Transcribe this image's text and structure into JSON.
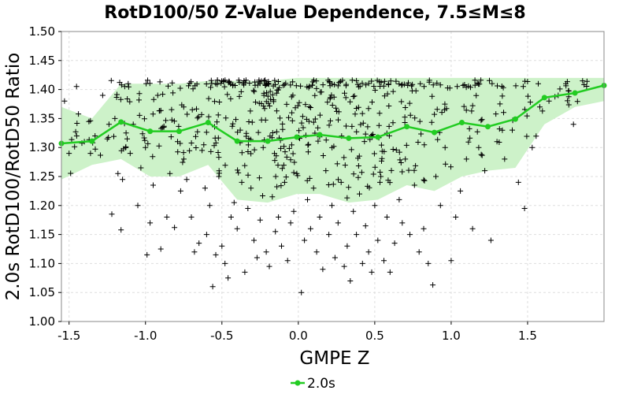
{
  "chart_data": {
    "type": "scatter",
    "title": "RotD100/50 Z-Value Dependence, 7.5≤M≤8",
    "xlabel": "GMPE Z",
    "ylabel": "2.0s RotD100/RotD50 Ratio",
    "xlim": [
      -1.55,
      2.0
    ],
    "ylim": [
      1.0,
      1.5
    ],
    "x_ticks": [
      -1.5,
      -1.0,
      -0.5,
      0.0,
      0.5,
      1.0,
      1.5
    ],
    "x_tick_labels": [
      "-1.5",
      "-1.0",
      "-0.5",
      "0.0",
      "0.5",
      "1.0",
      "1.5"
    ],
    "y_ticks": [
      1.0,
      1.05,
      1.1,
      1.15,
      1.2,
      1.25,
      1.3,
      1.35,
      1.4,
      1.45,
      1.5
    ],
    "y_tick_labels": [
      "1.00",
      "1.05",
      "1.10",
      "1.15",
      "1.20",
      "1.25",
      "1.30",
      "1.35",
      "1.40",
      "1.45",
      "1.50"
    ],
    "grid": true,
    "legend_position": "bottom-center",
    "colors": {
      "mean_line": "#22cc22",
      "band_fill": "#cdf2c9",
      "points": "#000000",
      "grid": "#dddddd"
    },
    "mean_series": {
      "name": "2.0s",
      "x": [
        -1.55,
        -1.35,
        -1.16,
        -0.97,
        -0.78,
        -0.59,
        -0.4,
        -0.2,
        -0.01,
        0.14,
        0.33,
        0.52,
        0.71,
        0.89,
        1.07,
        1.24,
        1.42,
        1.61,
        1.81,
        2.0
      ],
      "y": [
        1.307,
        1.311,
        1.344,
        1.328,
        1.328,
        1.343,
        1.311,
        1.311,
        1.318,
        1.322,
        1.316,
        1.318,
        1.336,
        1.326,
        1.343,
        1.336,
        1.349,
        1.386,
        1.394,
        1.407
      ]
    },
    "std_band": {
      "x": [
        -1.55,
        -1.35,
        -1.16,
        -0.97,
        -0.78,
        -0.59,
        -0.4,
        -0.2,
        -0.01,
        0.14,
        0.33,
        0.52,
        0.71,
        0.89,
        1.07,
        1.24,
        1.42,
        1.61,
        1.81,
        2.0
      ],
      "upper": [
        1.37,
        1.35,
        1.41,
        1.41,
        1.41,
        1.415,
        1.415,
        1.415,
        1.42,
        1.42,
        1.42,
        1.42,
        1.42,
        1.42,
        1.42,
        1.42,
        1.42,
        1.42,
        1.42,
        1.42
      ],
      "lower": [
        1.245,
        1.27,
        1.28,
        1.25,
        1.25,
        1.27,
        1.21,
        1.205,
        1.22,
        1.22,
        1.205,
        1.21,
        1.235,
        1.225,
        1.25,
        1.26,
        1.265,
        1.34,
        1.37,
        1.38
      ]
    },
    "scatter": {
      "points": [
        [
          -1.53,
          1.38
        ],
        [
          -1.5,
          1.29
        ],
        [
          -1.45,
          1.32
        ],
        [
          -1.4,
          1.31
        ],
        [
          -1.36,
          1.29
        ],
        [
          -1.33,
          1.32
        ],
        [
          -1.28,
          1.39
        ],
        [
          -1.25,
          1.315
        ],
        [
          -1.22,
          1.185
        ],
        [
          -1.2,
          1.35
        ],
        [
          -1.18,
          1.255
        ],
        [
          -1.16,
          1.158
        ],
        [
          -1.15,
          1.245
        ],
        [
          -1.12,
          1.315
        ],
        [
          -1.1,
          1.29
        ],
        [
          -1.08,
          1.34
        ],
        [
          -1.05,
          1.2
        ],
        [
          -1.03,
          1.265
        ],
        [
          -1.0,
          1.3
        ],
        [
          -0.99,
          1.115
        ],
        [
          -0.97,
          1.17
        ],
        [
          -0.95,
          1.235
        ],
        [
          -0.92,
          1.39
        ],
        [
          -0.9,
          1.125
        ],
        [
          -0.88,
          1.335
        ],
        [
          -0.86,
          1.18
        ],
        [
          -0.84,
          1.255
        ],
        [
          -0.81,
          1.162
        ],
        [
          -0.79,
          1.31
        ],
        [
          -0.77,
          1.225
        ],
        [
          -0.75,
          1.37
        ],
        [
          -0.73,
          1.245
        ],
        [
          -0.7,
          1.18
        ],
        [
          -0.68,
          1.12
        ],
        [
          -0.65,
          1.135
        ],
        [
          -0.63,
          1.295
        ],
        [
          -0.61,
          1.23
        ],
        [
          -0.6,
          1.15
        ],
        [
          -0.58,
          1.2
        ],
        [
          -0.56,
          1.06
        ],
        [
          -0.54,
          1.115
        ],
        [
          -0.52,
          1.25
        ],
        [
          -0.5,
          1.13
        ],
        [
          -0.48,
          1.1
        ],
        [
          -0.46,
          1.075
        ],
        [
          -0.44,
          1.18
        ],
        [
          -0.42,
          1.205
        ],
        [
          -0.4,
          1.16
        ],
        [
          -0.38,
          1.33
        ],
        [
          -0.35,
          1.085
        ],
        [
          -0.33,
          1.195
        ],
        [
          -0.31,
          1.23
        ],
        [
          -0.29,
          1.14
        ],
        [
          -0.27,
          1.11
        ],
        [
          -0.25,
          1.175
        ],
        [
          -0.23,
          1.3
        ],
        [
          -0.21,
          1.12
        ],
        [
          -0.19,
          1.095
        ],
        [
          -0.17,
          1.215
        ],
        [
          -0.15,
          1.155
        ],
        [
          -0.13,
          1.18
        ],
        [
          -0.11,
          1.13
        ],
        [
          -0.09,
          1.24
        ],
        [
          -0.07,
          1.105
        ],
        [
          -0.05,
          1.17
        ],
        [
          -0.03,
          1.19
        ],
        [
          -0.01,
          1.255
        ],
        [
          0.02,
          1.05
        ],
        [
          0.04,
          1.14
        ],
        [
          0.06,
          1.21
        ],
        [
          0.08,
          1.16
        ],
        [
          0.1,
          1.23
        ],
        [
          0.12,
          1.12
        ],
        [
          0.14,
          1.18
        ],
        [
          0.16,
          1.09
        ],
        [
          0.18,
          1.26
        ],
        [
          0.2,
          1.15
        ],
        [
          0.22,
          1.2
        ],
        [
          0.24,
          1.11
        ],
        [
          0.26,
          1.17
        ],
        [
          0.28,
          1.24
        ],
        [
          0.3,
          1.095
        ],
        [
          0.32,
          1.13
        ],
        [
          0.34,
          1.07
        ],
        [
          0.36,
          1.19
        ],
        [
          0.38,
          1.15
        ],
        [
          0.4,
          1.22
        ],
        [
          0.42,
          1.1
        ],
        [
          0.44,
          1.165
        ],
        [
          0.46,
          1.12
        ],
        [
          0.48,
          1.085
        ],
        [
          0.5,
          1.2
        ],
        [
          0.52,
          1.14
        ],
        [
          0.54,
          1.25
        ],
        [
          0.56,
          1.105
        ],
        [
          0.58,
          1.18
        ],
        [
          0.6,
          1.085
        ],
        [
          0.63,
          1.135
        ],
        [
          0.66,
          1.21
        ],
        [
          0.68,
          1.17
        ],
        [
          0.7,
          1.28
        ],
        [
          0.73,
          1.15
        ],
        [
          0.76,
          1.235
        ],
        [
          0.79,
          1.12
        ],
        [
          0.82,
          1.16
        ],
        [
          0.85,
          1.1
        ],
        [
          0.88,
          1.063
        ],
        [
          0.9,
          1.25
        ],
        [
          0.93,
          1.2
        ],
        [
          0.96,
          1.3
        ],
        [
          1.0,
          1.105
        ],
        [
          1.03,
          1.18
        ],
        [
          1.06,
          1.225
        ],
        [
          1.1,
          1.28
        ],
        [
          1.14,
          1.16
        ],
        [
          1.18,
          1.3
        ],
        [
          1.22,
          1.26
        ],
        [
          1.26,
          1.14
        ],
        [
          1.3,
          1.31
        ],
        [
          1.35,
          1.28
        ],
        [
          1.4,
          1.33
        ],
        [
          1.44,
          1.24
        ],
        [
          1.48,
          1.195
        ],
        [
          1.53,
          1.3
        ],
        [
          1.58,
          1.37
        ],
        [
          1.64,
          1.38
        ],
        [
          1.7,
          1.39
        ],
        [
          1.75,
          1.41
        ],
        [
          1.8,
          1.34
        ],
        [
          1.86,
          1.415
        ]
      ]
    }
  },
  "legend": {
    "label": "2.0s"
  }
}
